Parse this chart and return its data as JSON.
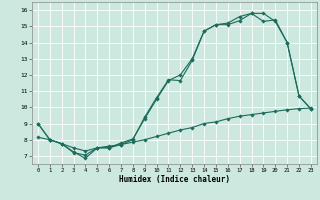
{
  "xlabel": "Humidex (Indice chaleur)",
  "bg_color": "#cce8df",
  "line_color": "#1a6b5a",
  "grid_color": "#ffffff",
  "xlim": [
    -0.5,
    23.5
  ],
  "ylim": [
    6.5,
    16.5
  ],
  "xticks": [
    0,
    1,
    2,
    3,
    4,
    5,
    6,
    7,
    8,
    9,
    10,
    11,
    12,
    13,
    14,
    15,
    16,
    17,
    18,
    19,
    20,
    21,
    22,
    23
  ],
  "yticks": [
    7,
    8,
    9,
    10,
    11,
    12,
    13,
    14,
    15,
    16
  ],
  "line1_x": [
    0,
    1,
    2,
    3,
    4,
    5,
    6,
    7,
    8,
    9,
    10,
    11,
    12,
    13,
    14,
    15,
    16,
    17,
    18,
    19,
    20,
    21,
    22,
    23
  ],
  "line1_y": [
    9.0,
    8.0,
    7.75,
    7.25,
    6.85,
    7.5,
    7.5,
    7.7,
    8.0,
    9.4,
    10.6,
    11.7,
    11.65,
    12.9,
    14.7,
    15.1,
    15.1,
    15.35,
    15.8,
    15.8,
    15.3,
    14.0,
    10.7,
    9.9
  ],
  "line2_x": [
    0,
    1,
    2,
    3,
    4,
    5,
    6,
    7,
    8,
    9,
    10,
    11,
    12,
    13,
    14,
    15,
    16,
    17,
    18,
    19,
    20,
    21,
    22,
    23
  ],
  "line2_y": [
    9.0,
    8.0,
    7.75,
    7.2,
    7.05,
    7.5,
    7.5,
    7.8,
    8.05,
    9.3,
    10.5,
    11.65,
    12.0,
    13.0,
    14.7,
    15.1,
    15.2,
    15.6,
    15.8,
    15.3,
    15.4,
    14.0,
    10.7,
    9.9
  ],
  "line3_x": [
    0,
    1,
    2,
    3,
    4,
    5,
    6,
    7,
    8,
    9,
    10,
    11,
    12,
    13,
    14,
    15,
    16,
    17,
    18,
    19,
    20,
    21,
    22,
    23
  ],
  "line3_y": [
    8.15,
    8.0,
    7.75,
    7.5,
    7.3,
    7.5,
    7.6,
    7.7,
    7.85,
    8.0,
    8.2,
    8.4,
    8.6,
    8.75,
    9.0,
    9.1,
    9.3,
    9.45,
    9.55,
    9.65,
    9.75,
    9.85,
    9.92,
    9.95
  ]
}
